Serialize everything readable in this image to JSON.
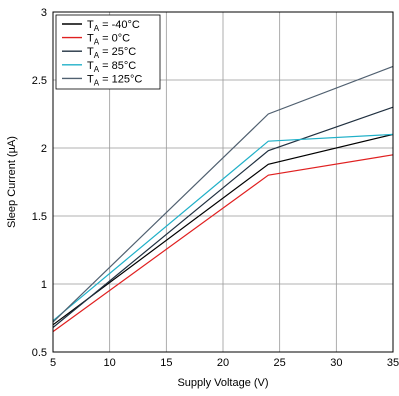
{
  "chart_data": {
    "type": "line",
    "title": "",
    "xlabel": "Supply Voltage (V)",
    "ylabel": "Sleep Current (µA)",
    "xlim": [
      5,
      35
    ],
    "ylim": [
      0.5,
      3
    ],
    "x_ticks": [
      5,
      10,
      15,
      20,
      25,
      30,
      35
    ],
    "x_tick_labels": [
      "5",
      "10",
      "15",
      "20",
      "25",
      "30",
      "35"
    ],
    "y_ticks": [
      0.5,
      1,
      1.5,
      2,
      2.5,
      3
    ],
    "y_tick_labels": [
      "0.5",
      "1",
      "1.5",
      "2",
      "2.5",
      "3"
    ],
    "grid": true,
    "legend_position": "top-left",
    "series": [
      {
        "name": "Tₐ = -40°C",
        "name_main": "T",
        "name_sub": "A",
        "name_rest": " = -40°C",
        "color": "#000000",
        "x": [
          5,
          24,
          35
        ],
        "y": [
          0.7,
          1.88,
          2.1
        ]
      },
      {
        "name": "Tₐ = 0°C",
        "name_main": "T",
        "name_sub": "A",
        "name_rest": " = 0°C",
        "color": "#e02020",
        "x": [
          5,
          24,
          35
        ],
        "y": [
          0.65,
          1.8,
          1.95
        ]
      },
      {
        "name": "Tₐ = 25°C",
        "name_main": "T",
        "name_sub": "A",
        "name_rest": " = 25°C",
        "color": "#203040",
        "x": [
          5,
          24,
          35
        ],
        "y": [
          0.68,
          1.98,
          2.3
        ]
      },
      {
        "name": "Tₐ = 85°C",
        "name_main": "T",
        "name_sub": "A",
        "name_rest": " = 85°C",
        "color": "#20b0c8",
        "x": [
          5,
          24,
          35
        ],
        "y": [
          0.73,
          2.05,
          2.1
        ]
      },
      {
        "name": "Tₐ = 125°C",
        "name_main": "T",
        "name_sub": "A",
        "name_rest": " = 125°C",
        "color": "#506070",
        "x": [
          5,
          24,
          35
        ],
        "y": [
          0.72,
          2.25,
          2.6
        ]
      }
    ]
  }
}
